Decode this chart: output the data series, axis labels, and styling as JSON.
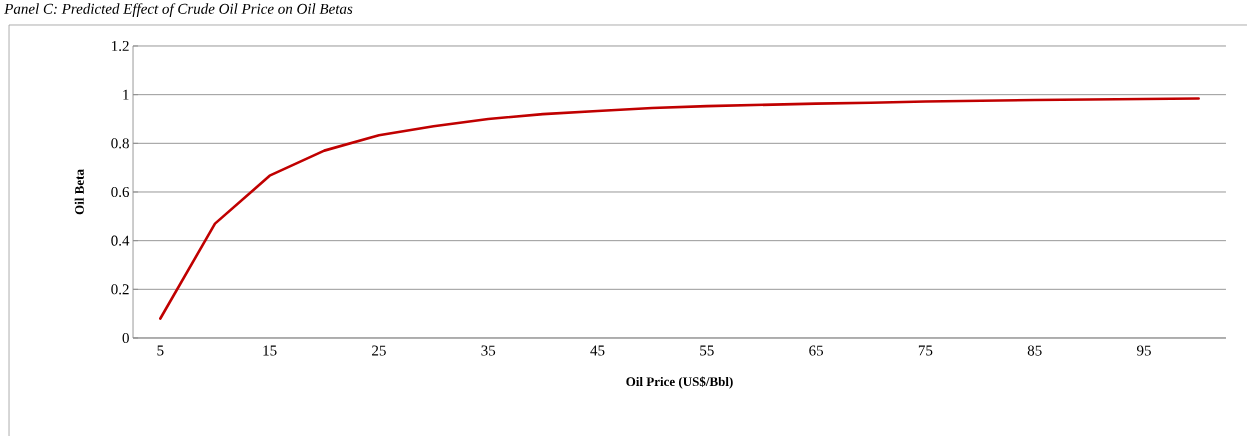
{
  "chart_data": {
    "type": "line",
    "title": "Panel C: Predicted Effect of Crude Oil Price on Oil Betas",
    "xlabel": "Oil Price (US$/Bbl)",
    "ylabel": "Oil Beta",
    "categories": [
      "5",
      null,
      "15",
      null,
      "25",
      null,
      "35",
      null,
      "45",
      null,
      "55",
      null,
      "65",
      null,
      "75",
      null,
      "85",
      null,
      "95",
      null
    ],
    "series": [
      {
        "color": "#c00000",
        "values": [
          0.08,
          0.47,
          0.667,
          0.77,
          0.833,
          0.87,
          0.9,
          0.92,
          0.933,
          0.945,
          0.953,
          0.958,
          0.963,
          0.967,
          0.972,
          0.975,
          0.978,
          0.98,
          0.982,
          0.984
        ]
      }
    ],
    "ylim": [
      0,
      1.2
    ],
    "yticks": [
      0,
      0.2,
      0.4,
      0.6,
      0.8,
      1,
      1.2
    ],
    "grid": "y",
    "legend": false,
    "marker": "none",
    "line_style": "solid"
  }
}
